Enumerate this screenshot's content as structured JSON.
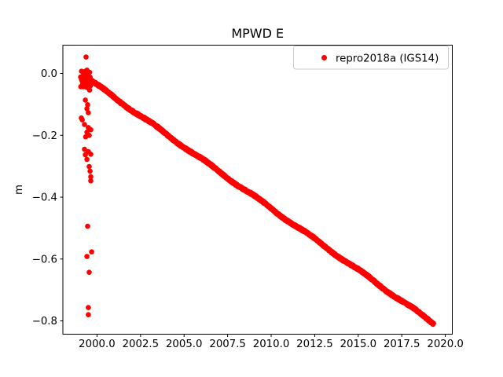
{
  "title": "MPWD E",
  "colors": {
    "points": "#ff0000",
    "axis": "#000000",
    "text": "#000000",
    "legend_border": "#cccccc",
    "background": "#ffffff"
  },
  "chart_data": {
    "type": "scatter",
    "title": "MPWD E",
    "xlabel": "",
    "ylabel": "m",
    "grid": false,
    "xlim": [
      1998.04,
      2020.4
    ],
    "ylim": [
      -0.843,
      0.0914
    ],
    "xticks": {
      "values": [
        2000.0,
        2002.5,
        2005.0,
        2007.5,
        2010.0,
        2012.5,
        2015.0,
        2017.5,
        2020.0
      ],
      "labels": [
        "2000.0",
        "2002.5",
        "2005.0",
        "2007.5",
        "2010.0",
        "2012.5",
        "2015.0",
        "2017.5",
        "2020.0"
      ]
    },
    "yticks": {
      "values": [
        0.0,
        -0.2,
        -0.4,
        -0.6,
        -0.8
      ],
      "labels": [
        "0.0",
        "−0.2",
        "−0.4",
        "−0.6",
        "−0.8"
      ]
    },
    "legend": {
      "position": "upper right",
      "entries": [
        {
          "label": "repro2018a (IGS14)",
          "color": "#ff0000",
          "marker": "dot"
        }
      ]
    },
    "series": [
      {
        "name": "repro2018a (IGS14)",
        "color": "#ff0000",
        "marker_radius_px": 3.3,
        "trend": {
          "x_start": 1999.55,
          "y_start": -0.02,
          "x_end": 2019.32,
          "y_end": -0.808,
          "points_per_year": 100,
          "y_jitter": 0.006,
          "wiggle_amp": 0.0035,
          "wiggle_freq": 2.1
        },
        "cluster": {
          "x_center": 1999.35,
          "x_halfwidth": 0.33,
          "y_center": -0.018,
          "y_halfheight": 0.038,
          "n": 80
        },
        "outliers": [
          [
            1999.37,
            0.053
          ],
          [
            1999.33,
            -0.086
          ],
          [
            1999.46,
            -0.101
          ],
          [
            1999.42,
            -0.114
          ],
          [
            1999.5,
            -0.127
          ],
          [
            1999.1,
            -0.144
          ],
          [
            1999.15,
            -0.15
          ],
          [
            1999.28,
            -0.165
          ],
          [
            1999.5,
            -0.175
          ],
          [
            1999.64,
            -0.182
          ],
          [
            1999.42,
            -0.19
          ],
          [
            1999.55,
            -0.2
          ],
          [
            1999.35,
            -0.205
          ],
          [
            1999.28,
            -0.245
          ],
          [
            1999.5,
            -0.253
          ],
          [
            1999.64,
            -0.261
          ],
          [
            1999.33,
            -0.263
          ],
          [
            1999.42,
            -0.278
          ],
          [
            1999.55,
            -0.301
          ],
          [
            1999.6,
            -0.316
          ],
          [
            1999.64,
            -0.334
          ],
          [
            1999.64,
            -0.347
          ],
          [
            1999.46,
            -0.494
          ],
          [
            1999.69,
            -0.577
          ],
          [
            1999.42,
            -0.592
          ],
          [
            1999.55,
            -0.643
          ],
          [
            1999.5,
            -0.757
          ],
          [
            1999.5,
            -0.78
          ]
        ]
      }
    ]
  }
}
